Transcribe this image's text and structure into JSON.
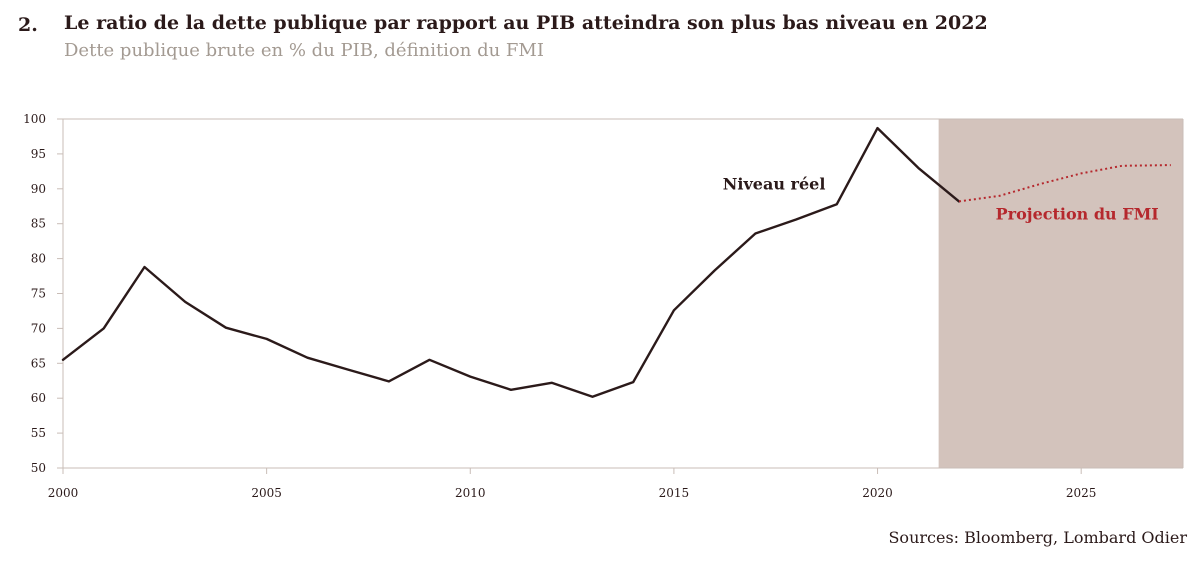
{
  "header": {
    "number": "2.",
    "title": "Le ratio de la dette publique par rapport au PIB atteindra son plus bas niveau en 2022",
    "subtitle": "Dette publique brute en % du PIB, définition du FMI"
  },
  "source": "Sources: Bloomberg, Lombard Odier",
  "colors": {
    "actual": "#2b1a1a",
    "projection": "#b5282d",
    "projection_bg": "#d3c3bc",
    "axis": "#c9bdb7"
  },
  "chart_data": {
    "type": "line",
    "xlim": [
      2000,
      2027.5
    ],
    "ylim": [
      50,
      100
    ],
    "xticks": [
      2000,
      2005,
      2010,
      2015,
      2020,
      2025
    ],
    "yticks": [
      50,
      55,
      60,
      65,
      70,
      75,
      80,
      85,
      90,
      95,
      100
    ],
    "projection_start": 2021.5,
    "series": [
      {
        "name": "Niveau réel",
        "style": "solid",
        "x": [
          2000,
          2001,
          2002,
          2003,
          2004,
          2005,
          2006,
          2007,
          2008,
          2009,
          2010,
          2011,
          2012,
          2013,
          2014,
          2015,
          2016,
          2017,
          2018,
          2019,
          2020,
          2021,
          2022
        ],
        "y": [
          65.5,
          70.0,
          78.8,
          73.8,
          70.1,
          68.5,
          65.8,
          64.1,
          62.4,
          65.5,
          63.1,
          61.2,
          62.2,
          60.2,
          62.3,
          72.6,
          78.3,
          83.6,
          85.6,
          87.8,
          98.7,
          93.0,
          88.2
        ]
      },
      {
        "name": "Projection du FMI",
        "style": "dotted",
        "x": [
          2022,
          2023,
          2024,
          2025,
          2026,
          2027.2
        ],
        "y": [
          88.2,
          89.0,
          90.7,
          92.2,
          93.3,
          93.4
        ]
      }
    ],
    "annotations": [
      {
        "text": "Niveau réel",
        "x": 2016.2,
        "y": 89.9,
        "color": "#2b1a1a"
      },
      {
        "text": "Projection du FMI",
        "x": 2022.9,
        "y": 85.6,
        "color": "#b5282d"
      }
    ]
  }
}
